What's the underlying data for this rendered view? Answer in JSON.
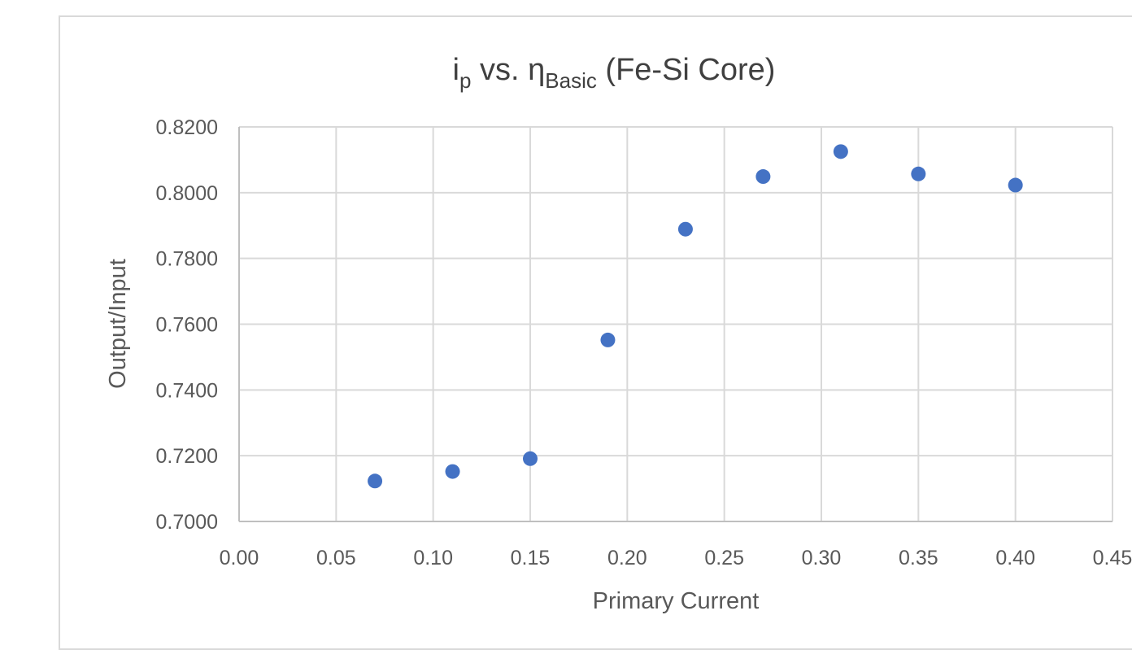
{
  "chart_data": {
    "type": "scatter",
    "title_main": "i",
    "title_sub1": "p",
    "title_mid": " vs. η",
    "title_sub2": "Basic",
    "title_end": " (Fe-Si Core)",
    "xlabel": "Primary Current",
    "ylabel": "Output/Input",
    "xlim": [
      0,
      0.45
    ],
    "ylim": [
      0.7,
      0.82
    ],
    "x_ticks": [
      "0.00",
      "0.05",
      "0.10",
      "0.15",
      "0.20",
      "0.25",
      "0.30",
      "0.35",
      "0.40",
      "0.45"
    ],
    "y_ticks": [
      "0.7000",
      "0.7200",
      "0.7400",
      "0.7600",
      "0.7800",
      "0.8000",
      "0.8200"
    ],
    "grid": true,
    "marker_color": "#4472c4",
    "series": [
      {
        "x": [
          0.07,
          0.11,
          0.15,
          0.19,
          0.23,
          0.27,
          0.31,
          0.35,
          0.4
        ],
        "y": [
          0.7123,
          0.7152,
          0.7191,
          0.7552,
          0.7889,
          0.8049,
          0.8125,
          0.8057,
          0.8023
        ]
      }
    ]
  }
}
